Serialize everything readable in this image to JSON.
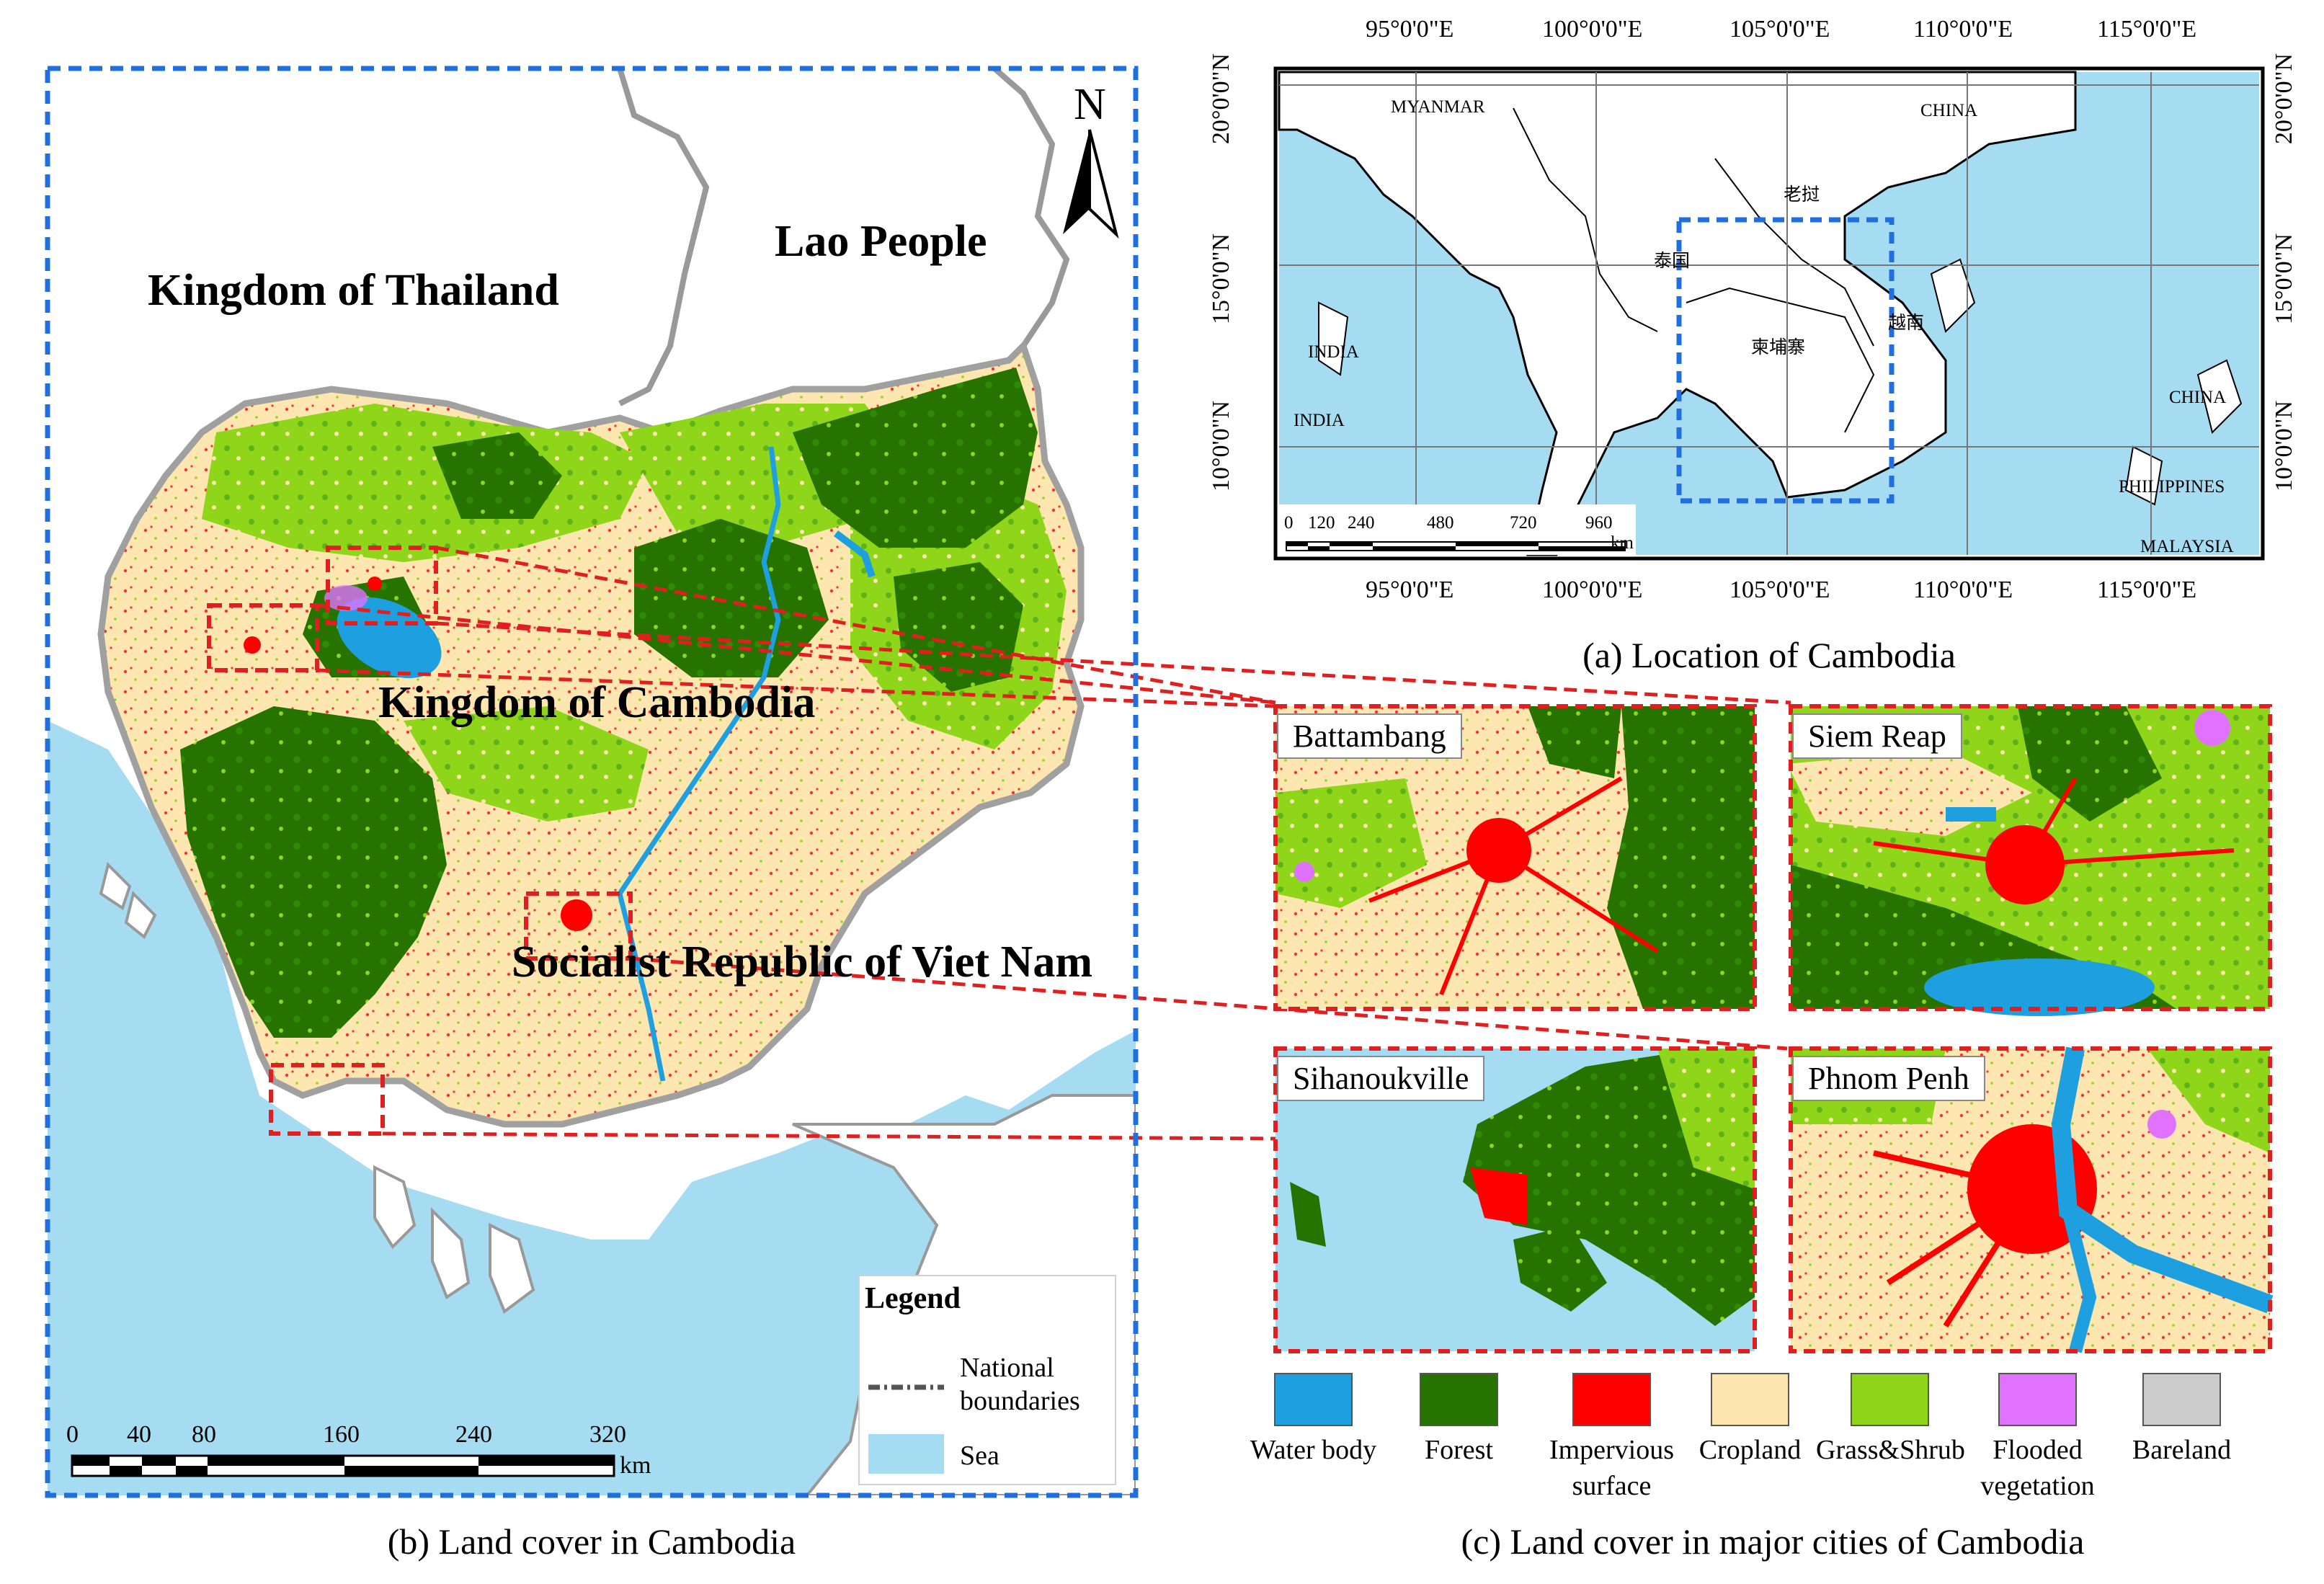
{
  "panel_b": {
    "caption": "(b) Land cover in Cambodia",
    "north_label": "N",
    "country_labels": {
      "thailand": "Kingdom of Thailand",
      "laos": "Lao People",
      "cambodia": "Kingdom of Cambodia",
      "vietnam": "Socialist Republic of Viet Nam"
    },
    "legend": {
      "title": "Legend",
      "boundary_line1": "National",
      "boundary_line2": "boundaries",
      "sea": "Sea"
    },
    "scale": {
      "ticks": [
        "0",
        "40",
        "80",
        "160",
        "240",
        "320"
      ],
      "unit": "km"
    }
  },
  "panel_a": {
    "caption": "(a) Location of Cambodia",
    "lon_ticks": [
      "95°0'0\"E",
      "100°0'0\"E",
      "105°0'0\"E",
      "110°0'0\"E",
      "115°0'0\"E"
    ],
    "lat_ticks": [
      "20°0'0\"N",
      "15°0'0\"N",
      "10°0'0\"N"
    ],
    "places": {
      "myanmar": "MYANMAR",
      "china_n": "CHINA",
      "laos_cn": "老挝",
      "thailand_cn": "泰国",
      "cambodia_cn": "柬埔寨",
      "vietnam_cn": "越南",
      "india1": "INDIA",
      "india2": "INDIA",
      "china_e": "CHINA",
      "philippines": "PHILIPPINES",
      "malaysia": "MALAYSIA"
    },
    "scale": {
      "ticks": [
        "0",
        "120",
        "240",
        "480",
        "720",
        "960"
      ],
      "unit": "km"
    }
  },
  "panel_c": {
    "caption": "(c) Land cover in major cities of Cambodia",
    "cities": [
      "Battambang",
      "Siem Reap",
      "Sihanoukville",
      "Phnom Penh"
    ]
  },
  "land_cover_legend": [
    {
      "label_line1": "Water body",
      "label_line2": "",
      "color": "#1ea0e0"
    },
    {
      "label_line1": "Forest",
      "label_line2": "",
      "color": "#267300"
    },
    {
      "label_line1": "Impervious",
      "label_line2": "surface",
      "color": "#ff0000"
    },
    {
      "label_line1": "Cropland",
      "label_line2": "",
      "color": "#fde6b0"
    },
    {
      "label_line1": "Grass&Shrub",
      "label_line2": "",
      "color": "#8fd61a"
    },
    {
      "label_line1": "Flooded",
      "label_line2": "vegetation",
      "color": "#df73ff"
    },
    {
      "label_line1": "Bareland",
      "label_line2": "",
      "color": "#cccccc"
    }
  ],
  "colors": {
    "sea": "#a6dcf2",
    "forest": "#267300",
    "grass": "#8fd61a",
    "cropland": "#fde6b0",
    "impervious": "#ff0000",
    "water": "#1ea0e0",
    "flooded": "#df73ff",
    "blue_dash": "#1f6fe0",
    "red_dash": "#e02020"
  }
}
